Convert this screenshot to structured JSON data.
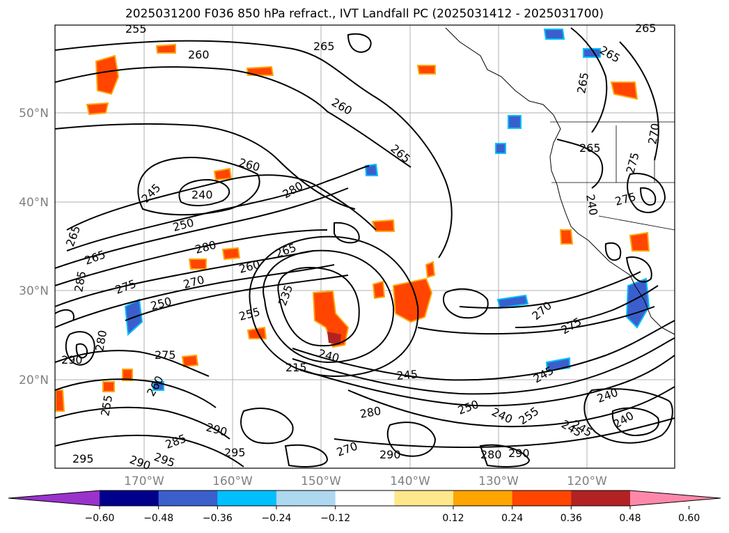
{
  "title": "2025031200 F036 850 hPa refract., IVT Landfall PC (2025031412 - 2025031700)",
  "map": {
    "lat_labels": [
      "50°N",
      "40°N",
      "30°N",
      "20°N"
    ],
    "lon_labels": [
      "170°W",
      "160°W",
      "150°W",
      "140°W",
      "130°W",
      "120°W"
    ],
    "grid": true,
    "contour_labels": [
      "255",
      "260",
      "265",
      "260",
      "265",
      "260",
      "240",
      "245",
      "250",
      "280",
      "265",
      "280",
      "265",
      "260",
      "270",
      "275",
      "250",
      "235",
      "255",
      "240",
      "265",
      "285",
      "275",
      "280",
      "290",
      "280",
      "260",
      "245",
      "255",
      "215",
      "245",
      "250",
      "240",
      "280",
      "290",
      "295",
      "285",
      "290",
      "295",
      "295",
      "290",
      "290",
      "270",
      "275",
      "270",
      "245",
      "240",
      "275",
      "265",
      "265",
      "265",
      "270",
      "275",
      "265",
      "240",
      "240",
      "245",
      "255"
    ]
  },
  "colorbar": {
    "ticks": [
      "−0.60",
      "−0.48",
      "−0.36",
      "−0.24",
      "−0.12",
      "0.12",
      "0.24",
      "0.36",
      "0.48",
      "0.60"
    ],
    "colors": [
      "#9933cc",
      "#00008b",
      "#3a5fcd",
      "#00bfff",
      "#add8f0",
      "#ffffff",
      "#ffe88c",
      "#ffa500",
      "#ff4500",
      "#b22222",
      "#ff88aa"
    ]
  }
}
